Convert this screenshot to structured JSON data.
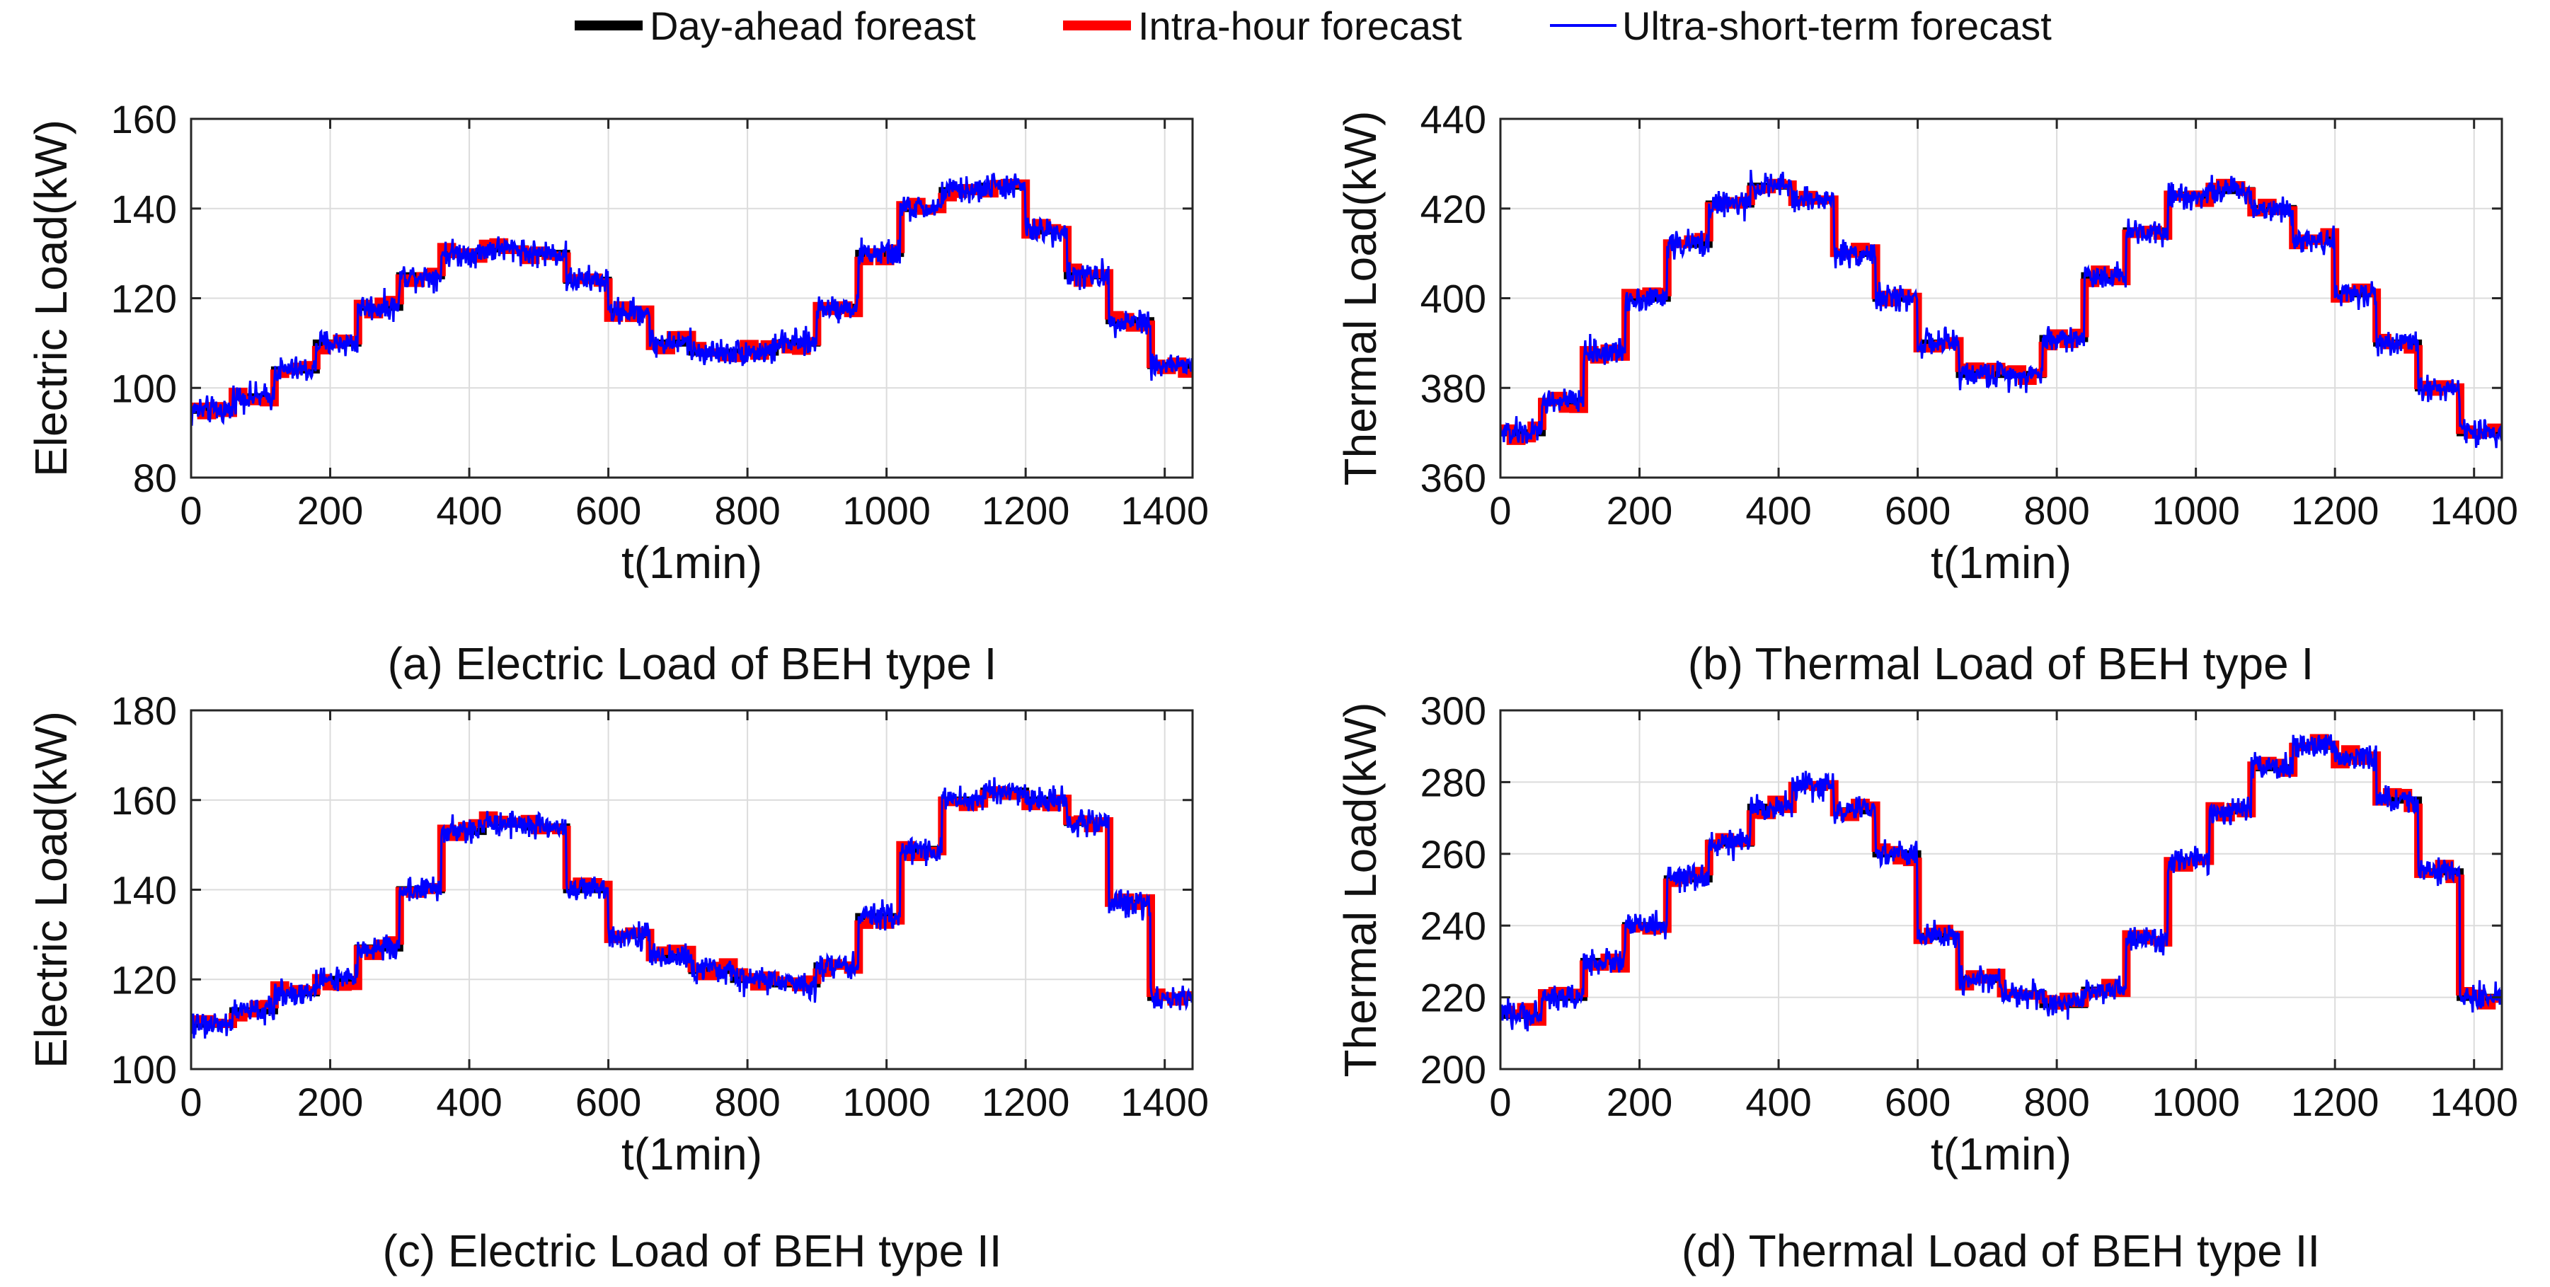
{
  "legend": [
    {
      "label": "Day-ahead foreast",
      "color": "#000000"
    },
    {
      "label": "Intra-hour forecast",
      "color": "#ff0000"
    },
    {
      "label": "Ultra-short-term forecast",
      "color": "#0000ff"
    }
  ],
  "chart_data": [
    {
      "type": "line",
      "caption": "(a) Electric Load of BEH type I",
      "xlabel": "t(1min)",
      "ylabel": "Electric Load(kW)",
      "xlim": [
        0,
        1440
      ],
      "ylim": [
        80,
        160
      ],
      "xticks": [
        0,
        200,
        400,
        600,
        800,
        1000,
        1200,
        1400
      ],
      "yticks": [
        80,
        100,
        120,
        140,
        160
      ],
      "grid": true,
      "step_minutes": 60,
      "day_ahead_hourly": [
        95,
        98,
        104,
        110,
        118,
        125,
        130,
        131,
        130,
        124,
        117,
        110,
        108,
        108,
        110,
        118,
        130,
        140,
        144,
        145,
        135,
        125,
        115,
        105
      ],
      "intra_hour_minutes": 15,
      "ultra_short_term_minutes": 1
    },
    {
      "type": "line",
      "caption": "(b) Thermal Load of BEH type I",
      "xlabel": "t(1min)",
      "ylabel": "Thermal Load(kW)",
      "xlim": [
        0,
        1440
      ],
      "ylim": [
        360,
        440
      ],
      "xticks": [
        0,
        200,
        400,
        600,
        800,
        1000,
        1200,
        1400
      ],
      "yticks": [
        360,
        380,
        400,
        420,
        440
      ],
      "grid": true,
      "step_minutes": 60,
      "day_ahead_hourly": [
        370,
        377,
        388,
        400,
        412,
        421,
        425,
        422,
        410,
        400,
        390,
        383,
        383,
        391,
        405,
        415,
        423,
        424,
        420,
        413,
        401,
        390,
        380,
        370
      ],
      "intra_hour_minutes": 15,
      "ultra_short_term_minutes": 1
    },
    {
      "type": "line",
      "caption": "(c) Electric Load of BEH type II",
      "xlabel": "t(1min)",
      "ylabel": "Electric Load(kW)",
      "xlim": [
        0,
        1440
      ],
      "ylim": [
        100,
        180
      ],
      "xticks": [
        0,
        200,
        400,
        600,
        800,
        1000,
        1200,
        1400
      ],
      "yticks": [
        100,
        120,
        140,
        160,
        180
      ],
      "grid": true,
      "step_minutes": 60,
      "day_ahead_hourly": [
        110,
        113,
        117,
        120,
        127,
        140,
        153,
        155,
        154,
        140,
        130,
        125,
        122,
        120,
        119,
        123,
        134,
        149,
        160,
        162,
        160,
        155,
        137,
        116
      ],
      "intra_hour_minutes": 15,
      "ultra_short_term_minutes": 1
    },
    {
      "type": "line",
      "caption": "(d) Thermal Load of BEH type II",
      "xlabel": "t(1min)",
      "ylabel": "Thermal Load(kW)",
      "xlim": [
        0,
        1440
      ],
      "ylim": [
        200,
        300
      ],
      "xticks": [
        0,
        200,
        400,
        600,
        800,
        1000,
        1200,
        1400
      ],
      "yticks": [
        200,
        220,
        240,
        260,
        280,
        300
      ],
      "grid": true,
      "step_minutes": 60,
      "day_ahead_hourly": [
        215,
        220,
        230,
        240,
        253,
        263,
        273,
        279,
        272,
        260,
        237,
        225,
        221,
        218,
        222,
        236,
        258,
        272,
        284,
        290,
        287,
        275,
        255,
        220
      ],
      "intra_hour_minutes": 15,
      "ultra_short_term_minutes": 1
    }
  ]
}
